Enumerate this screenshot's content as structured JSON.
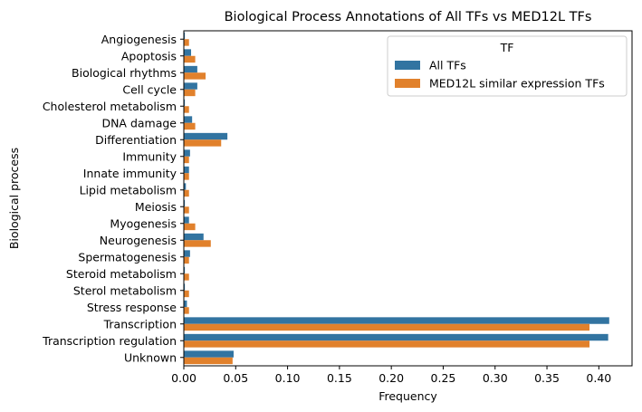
{
  "chart_data": {
    "type": "bar",
    "orientation": "horizontal",
    "title": "Biological Process Annotations of All TFs vs MED12L TFs",
    "xlabel": "Frequency",
    "ylabel": "Biological process",
    "xlim": [
      0,
      0.432
    ],
    "xticks": [
      0.0,
      0.05,
      0.1,
      0.15,
      0.2,
      0.25,
      0.3,
      0.35,
      0.4
    ],
    "xtick_labels": [
      "0.00",
      "0.05",
      "0.10",
      "0.15",
      "0.20",
      "0.25",
      "0.30",
      "0.35",
      "0.40"
    ],
    "grid": false,
    "legend": {
      "title": "TF",
      "position": "top-right"
    },
    "categories": [
      "Angiogenesis",
      "Apoptosis",
      "Biological rhythms",
      "Cell cycle",
      "Cholesterol metabolism",
      "DNA damage",
      "Differentiation",
      "Immunity",
      "Innate immunity",
      "Lipid metabolism",
      "Meiosis",
      "Myogenesis",
      "Neurogenesis",
      "Spermatogenesis",
      "Steroid metabolism",
      "Sterol metabolism",
      "Stress response",
      "Transcription",
      "Transcription regulation",
      "Unknown"
    ],
    "series": [
      {
        "name": "All TFs",
        "color": "#3274a1",
        "values": [
          0.001,
          0.007,
          0.013,
          0.013,
          0.001,
          0.008,
          0.042,
          0.006,
          0.005,
          0.002,
          0.001,
          0.005,
          0.019,
          0.006,
          0.001,
          0.001,
          0.003,
          0.41,
          0.409,
          0.048
        ]
      },
      {
        "name": "MED12L similar expression TFs",
        "color": "#e1812c",
        "values": [
          0.005,
          0.011,
          0.021,
          0.011,
          0.005,
          0.011,
          0.036,
          0.005,
          0.005,
          0.005,
          0.005,
          0.011,
          0.026,
          0.005,
          0.005,
          0.005,
          0.005,
          0.391,
          0.391,
          0.047
        ]
      }
    ]
  }
}
